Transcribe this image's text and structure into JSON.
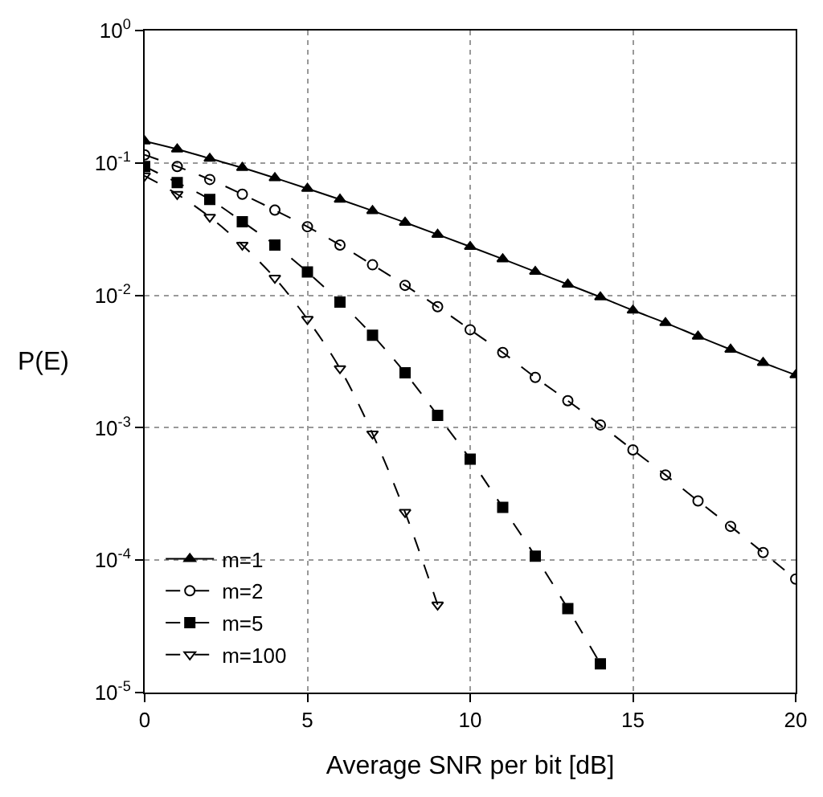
{
  "chart_data": {
    "type": "line",
    "xlabel": "Average SNR per bit [dB]",
    "ylabel": "P(E)",
    "log": "y",
    "x": [
      0,
      1,
      2,
      3,
      4,
      5,
      6,
      7,
      8,
      9,
      10,
      11,
      12,
      13,
      14,
      15,
      16,
      17,
      18,
      19,
      20
    ],
    "xlim": [
      0,
      20
    ],
    "xticks": [
      0,
      5,
      10,
      15,
      20
    ],
    "ylim": [
      1e-05,
      1
    ],
    "yticks": [
      {
        "value": 1,
        "label": "10$^{0}$"
      },
      {
        "value": 0.1,
        "label": "10$^{-1}$"
      },
      {
        "value": 0.01,
        "label": "10$^{-2}$"
      },
      {
        "value": 0.001,
        "label": "10$^{-3}$"
      },
      {
        "value": 0.0001,
        "label": "10$^{-4}$"
      },
      {
        "value": 1e-05,
        "label": "10$^{-5}$"
      }
    ],
    "grid": true,
    "legend": "bottom left",
    "series": [
      {
        "name": "m=1",
        "color": "#000000",
        "marker": "triangle-up",
        "line_style": "solid",
        "values": [
          0.146,
          0.127,
          0.108,
          0.092,
          0.077,
          0.064,
          0.053,
          0.0435,
          0.0355,
          0.0288,
          0.0233,
          0.0188,
          0.0151,
          0.0121,
          0.0097,
          0.0077,
          0.0062,
          0.0049,
          0.0039,
          0.0031,
          0.0025
        ]
      },
      {
        "name": "m=2",
        "color": "#000000",
        "marker": "circle-open",
        "line_style": "dashed",
        "values": [
          0.115,
          0.094,
          0.075,
          0.058,
          0.044,
          0.033,
          0.024,
          0.017,
          0.0119,
          0.0082,
          0.0055,
          0.0037,
          0.0024,
          0.0016,
          0.00105,
          0.00068,
          0.00044,
          0.00028,
          0.00018,
          0.000114,
          7.2e-05
        ]
      },
      {
        "name": "m=5",
        "color": "#000000",
        "marker": "square",
        "line_style": "dashed",
        "values": [
          0.094,
          0.071,
          0.053,
          0.036,
          0.024,
          0.015,
          0.0089,
          0.005,
          0.0026,
          0.00124,
          0.00058,
          0.00025,
          0.000107,
          4.3e-05,
          1.65e-05,
          null,
          null,
          null,
          null,
          null,
          null
        ]
      },
      {
        "name": "m=100",
        "color": "#000000",
        "marker": "triangle-down-open",
        "line_style": "dashed",
        "values": [
          0.08,
          0.058,
          0.039,
          0.024,
          0.0135,
          0.0066,
          0.0028,
          0.0009,
          0.00023,
          4.6e-05,
          null,
          null,
          null,
          null,
          null,
          null,
          null,
          null,
          null,
          null,
          null
        ]
      }
    ]
  }
}
